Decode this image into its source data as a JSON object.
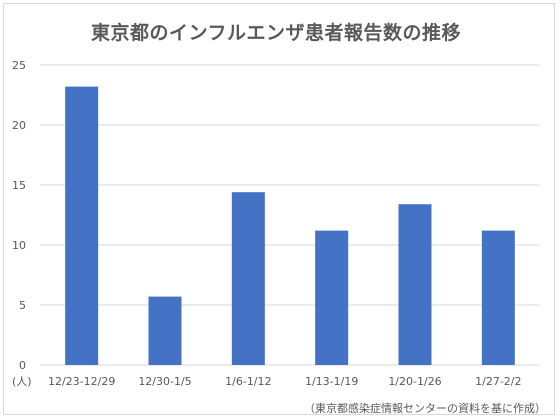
{
  "chart_data": {
    "type": "bar",
    "title": "東京都のインフルエンザ患者報告数の推移",
    "categories": [
      "12/23-12/29",
      "12/30-1/5",
      "1/6-1/12",
      "1/13-1/19",
      "1/20-1/26",
      "1/27-2/2"
    ],
    "values": [
      23.2,
      5.7,
      14.4,
      11.2,
      13.4,
      11.2
    ],
    "ylim": [
      0,
      25
    ],
    "yticks": [
      "0",
      "5",
      "10",
      "15",
      "20",
      "25"
    ],
    "ytick_values": [
      0,
      5,
      10,
      15,
      20,
      25
    ],
    "unit_label": "(人)",
    "source_note": "（東京都感染症情報センターの資料を基に作成）",
    "grid": true,
    "legend": "none",
    "bar_color": "#4472c4",
    "grid_color": "#d9d9d9"
  }
}
